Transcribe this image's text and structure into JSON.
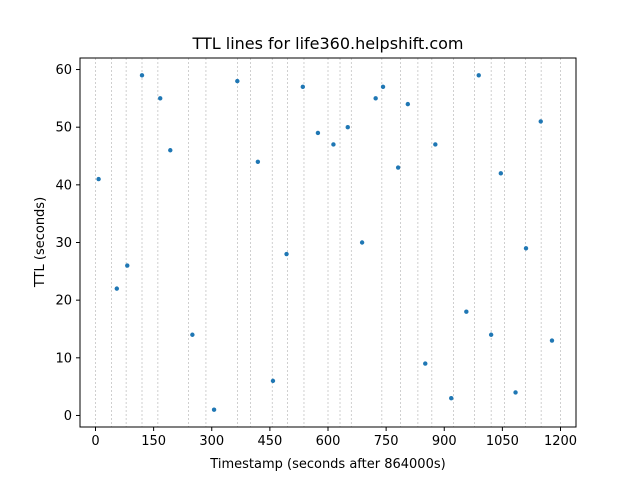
{
  "chart_data": {
    "type": "scatter",
    "title": "TTL lines for life360.helpshift.com",
    "xlabel": "Timestamp (seconds after 864000s)",
    "ylabel": "TTL (seconds)",
    "xlim": [
      -40,
      1240
    ],
    "ylim": [
      -2,
      62
    ],
    "xticks": [
      0,
      150,
      300,
      450,
      600,
      750,
      900,
      1050,
      1200
    ],
    "xtick_labels": [
      "0",
      "150",
      "300",
      "450",
      "600",
      "750",
      "900",
      "1050",
      "1200"
    ],
    "yticks": [
      0,
      10,
      20,
      30,
      40,
      50,
      60
    ],
    "ytick_labels": [
      "0",
      "10",
      "20",
      "30",
      "40",
      "50",
      "60"
    ],
    "vertical_grid_lines": [
      0,
      41,
      79,
      120,
      161,
      240,
      285,
      366,
      400,
      456,
      495,
      538,
      600,
      631,
      660,
      739,
      787,
      832,
      868,
      924,
      978,
      1021,
      1055,
      1110,
      1150,
      1200
    ],
    "grid": "vertical dashed lines only",
    "marker_color": "#1f77b4",
    "points": [
      {
        "x": 8,
        "y": 41
      },
      {
        "x": 55,
        "y": 22
      },
      {
        "x": 82,
        "y": 26
      },
      {
        "x": 120,
        "y": 59
      },
      {
        "x": 167,
        "y": 55
      },
      {
        "x": 193,
        "y": 46
      },
      {
        "x": 250,
        "y": 14
      },
      {
        "x": 306,
        "y": 1
      },
      {
        "x": 366,
        "y": 58
      },
      {
        "x": 419,
        "y": 44
      },
      {
        "x": 458,
        "y": 6
      },
      {
        "x": 493,
        "y": 28
      },
      {
        "x": 535,
        "y": 57
      },
      {
        "x": 574,
        "y": 49
      },
      {
        "x": 614,
        "y": 47
      },
      {
        "x": 651,
        "y": 50
      },
      {
        "x": 688,
        "y": 30
      },
      {
        "x": 723,
        "y": 55
      },
      {
        "x": 742,
        "y": 57
      },
      {
        "x": 781,
        "y": 43
      },
      {
        "x": 806,
        "y": 54
      },
      {
        "x": 851,
        "y": 9
      },
      {
        "x": 877,
        "y": 47
      },
      {
        "x": 918,
        "y": 3
      },
      {
        "x": 957,
        "y": 18
      },
      {
        "x": 989,
        "y": 59
      },
      {
        "x": 1021,
        "y": 14
      },
      {
        "x": 1046,
        "y": 42
      },
      {
        "x": 1084,
        "y": 4
      },
      {
        "x": 1111,
        "y": 29
      },
      {
        "x": 1149,
        "y": 51
      },
      {
        "x": 1178,
        "y": 13
      }
    ]
  }
}
